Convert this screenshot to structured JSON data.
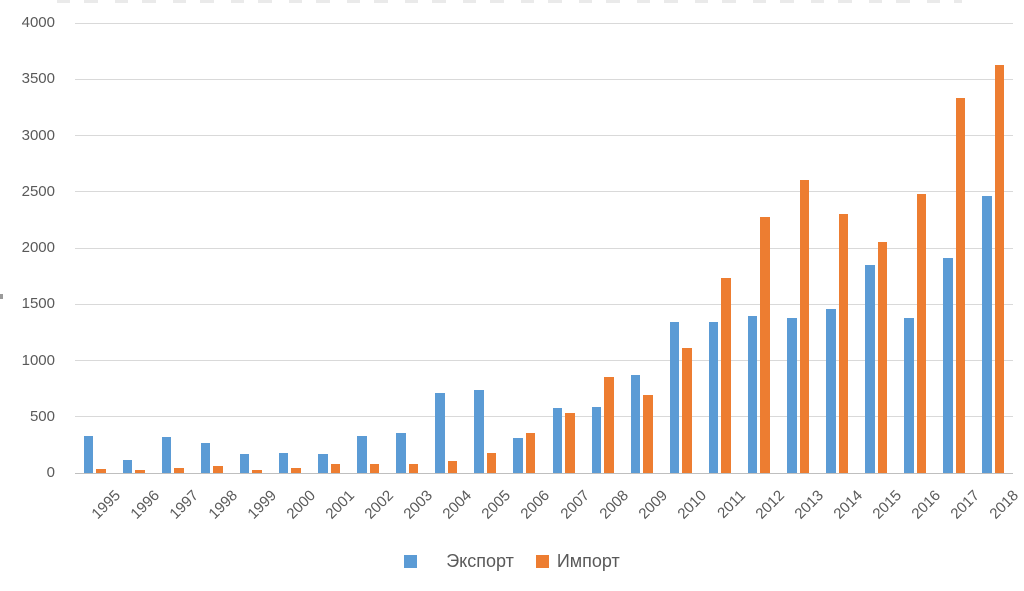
{
  "chart_data": {
    "type": "bar",
    "title": "",
    "title_clipped_offscreen": true,
    "categories": [
      "1995",
      "1996",
      "1997",
      "1998",
      "1999",
      "2000",
      "2001",
      "2002",
      "2003",
      "2004",
      "2005",
      "2006",
      "2007",
      "2008",
      "2009",
      "2010",
      "2011",
      "2012",
      "2013",
      "2014",
      "2015",
      "2016",
      "2017",
      "2018"
    ],
    "series": [
      {
        "name": "Экспорт",
        "color": "#5B9BD5",
        "values": [
          330,
          120,
          320,
          270,
          165,
          175,
          165,
          325,
          360,
          710,
          740,
          310,
          575,
          585,
          870,
          1340,
          1345,
          1395,
          1380,
          1455,
          1845,
          1375,
          1915,
          2460
        ]
      },
      {
        "name": "Импорт",
        "color": "#ED7D31",
        "values": [
          40,
          30,
          45,
          60,
          25,
          45,
          80,
          80,
          80,
          105,
          180,
          355,
          530,
          855,
          695,
          1115,
          1730,
          2280,
          2605,
          2305,
          2055,
          2480,
          3330,
          3625
        ]
      }
    ],
    "xlabel": "",
    "ylabel": "",
    "ylim": [
      0,
      4000
    ],
    "yticks": [
      0,
      500,
      1000,
      1500,
      2000,
      2500,
      3000,
      3500,
      4000
    ],
    "grid": true,
    "gridline_color": "#D9D9D9",
    "axis_text_color": "#595959",
    "x_tick_rotation_deg": 45,
    "legend_position": "bottom"
  },
  "legend": {
    "items": [
      {
        "label": "Экспорт",
        "color": "#5B9BD5"
      },
      {
        "label": "Импорт",
        "color": "#ED7D31"
      }
    ]
  }
}
